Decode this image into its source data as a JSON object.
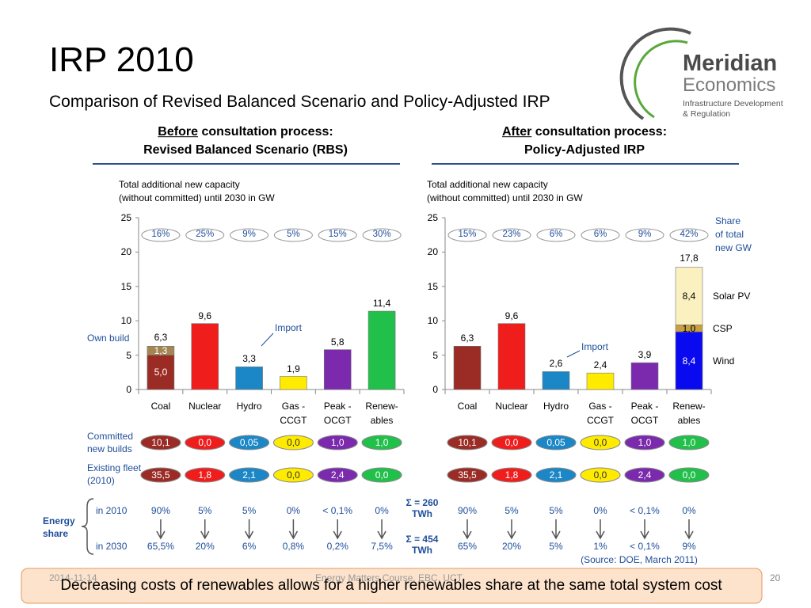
{
  "header": {
    "title": "IRP 2010",
    "subtitle": "Comparison of Revised Balanced Scenario and Policy-Adjusted IRP"
  },
  "logo": {
    "name": "Meridian",
    "name2": "Economics",
    "tagline1": "Infrastructure Development",
    "tagline2": "& Regulation"
  },
  "chart_data": [
    {
      "type": "bar",
      "stacked": true,
      "heading_em": "Before",
      "heading_rest": "consultation process:",
      "heading_line2": "Revised Balanced Scenario (RBS)",
      "y_label": [
        "Total additional new capacity",
        "(without committed) until 2030 in GW"
      ],
      "categories": [
        "Coal",
        "Nuclear",
        "Hydro",
        "Gas -\nCCGT",
        "Peak -\nOCGT",
        "Renew-\nables"
      ],
      "series": [
        {
          "colors": [
            "#9b2b25",
            "#f01d1d",
            "#1b87c6",
            "#ffeb00",
            "#7b2aae",
            "#21c04a"
          ],
          "values": [
            5.0,
            9.6,
            3.3,
            1.9,
            5.8,
            11.4
          ],
          "value_labels": [
            "5,0",
            "9,6",
            "3,3",
            "1,9",
            "5,8",
            "11,4"
          ]
        },
        {
          "colors": [
            "#a38652",
            null,
            null,
            null,
            null,
            null
          ],
          "values": [
            1.3,
            null,
            null,
            null,
            null,
            null
          ],
          "value_labels": [
            "1,3",
            null,
            null,
            null,
            null,
            null
          ]
        }
      ],
      "total_labels": [
        "6,3",
        null,
        null,
        null,
        null,
        null
      ],
      "ylim": [
        0,
        25
      ],
      "yticks": [
        0,
        5,
        10,
        15,
        20,
        25
      ],
      "shares": [
        "16%",
        "25%",
        "9%",
        "5%",
        "15%",
        "30%"
      ],
      "annotations": [
        "Own build",
        "Import"
      ],
      "row_colors": [
        "#9b2b25",
        "#f01d1d",
        "#1b87c6",
        "#ffeb00",
        "#7b2aae",
        "#21c04a"
      ],
      "committed": [
        "10,1",
        "0,0",
        "0,05",
        "0,0",
        "1,0",
        "1,0"
      ],
      "existing": [
        "35,5",
        "1,8",
        "2,1",
        "0,0",
        "2,4",
        "0,0"
      ],
      "energy_share_2010": [
        "90%",
        "5%",
        "5%",
        "0%",
        "< 0,1%",
        "0%"
      ],
      "energy_share_2030": [
        "65,5%",
        "20%",
        "6%",
        "0,8%",
        "0,2%",
        "7,5%"
      ]
    },
    {
      "type": "bar",
      "stacked": true,
      "heading_em": "After",
      "heading_rest": "consultation process:",
      "heading_line2": "Policy-Adjusted IRP",
      "y_label": [
        "Total additional new capacity",
        "(without committed) until 2030 in GW"
      ],
      "categories": [
        "Coal",
        "Nuclear",
        "Hydro",
        "Gas -\nCCGT",
        "Peak -\nOCGT",
        "Renew-\nables"
      ],
      "series": [
        {
          "name": "Wind",
          "colors": [
            "#9b2b25",
            "#f01d1d",
            "#1b87c6",
            "#ffeb00",
            "#7b2aae",
            "#0a0af0"
          ],
          "values": [
            6.3,
            9.6,
            2.6,
            2.4,
            3.9,
            8.4
          ],
          "value_labels": [
            "6,3",
            "9,6",
            "2,6",
            "2,4",
            "3,9",
            "8,4"
          ]
        },
        {
          "name": "CSP",
          "colors": [
            null,
            null,
            null,
            null,
            null,
            "#c9a040"
          ],
          "values": [
            null,
            null,
            null,
            null,
            null,
            1.0
          ],
          "value_labels": [
            null,
            null,
            null,
            null,
            null,
            "1,0"
          ]
        },
        {
          "name": "Solar PV",
          "colors": [
            null,
            null,
            null,
            null,
            null,
            "#faf0c0"
          ],
          "values": [
            null,
            null,
            null,
            null,
            null,
            8.4
          ],
          "value_labels": [
            null,
            null,
            null,
            null,
            null,
            "8,4"
          ]
        }
      ],
      "total_labels": [
        null,
        null,
        null,
        null,
        null,
        "17,8"
      ],
      "ylim": [
        0,
        25
      ],
      "yticks": [
        0,
        5,
        10,
        15,
        20,
        25
      ],
      "shares": [
        "15%",
        "23%",
        "6%",
        "6%",
        "9%",
        "42%"
      ],
      "annotations": [
        "Import"
      ],
      "row_colors": [
        "#9b2b25",
        "#f01d1d",
        "#1b87c6",
        "#ffeb00",
        "#7b2aae",
        "#21c04a"
      ],
      "committed": [
        "10,1",
        "0,0",
        "0,05",
        "0,0",
        "1,0",
        "1,0"
      ],
      "existing": [
        "35,5",
        "1,8",
        "2,1",
        "0,0",
        "2,4",
        "0,0"
      ],
      "energy_share_2010": [
        "90%",
        "5%",
        "5%",
        "0%",
        "< 0,1%",
        "0%"
      ],
      "energy_share_2030": [
        "65%",
        "20%",
        "5%",
        "1%",
        "< 0,1%",
        "9%"
      ]
    }
  ],
  "share_note": "Share\nof total\nnew GW",
  "row_labels": {
    "committed": "Committed\nnew builds",
    "existing": "Existing fleet\n(2010)",
    "energy_share": "Energy\nshare",
    "in_2010": "in 2010",
    "in_2030": "in 2030"
  },
  "sums": {
    "twh_2010": "Σ = 260\nTWh",
    "twh_2030": "Σ = 454\nTWh"
  },
  "source": "(Source: DOE, March 2011)",
  "footer": {
    "date": "2014-11-14",
    "course": "Energy Matters Course, EBC, UCT",
    "page": "20",
    "banner": "Decreasing costs of renewables allows for a higher renewables share at the same total system cost"
  }
}
